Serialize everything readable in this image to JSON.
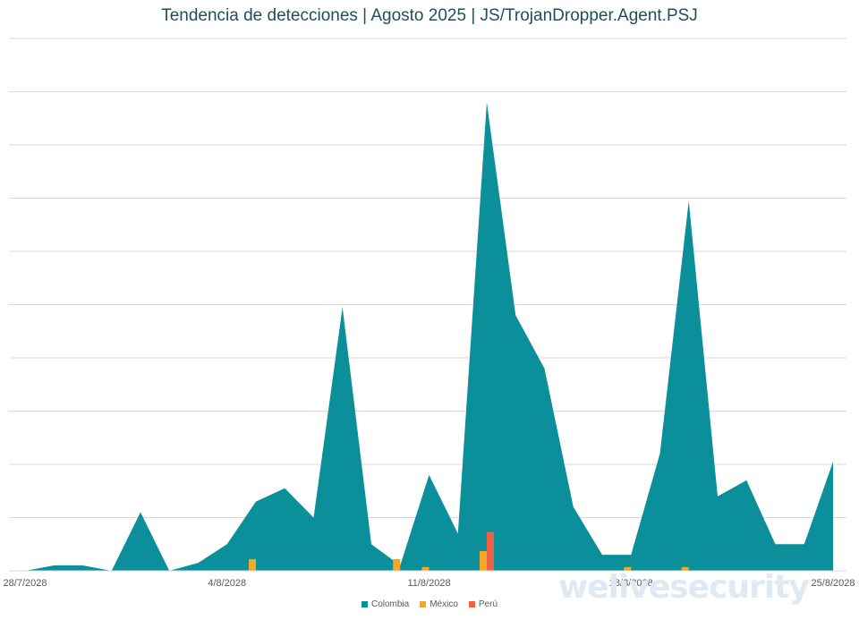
{
  "chart_data": {
    "type": "area",
    "title": "Tendencia de detecciones | Agosto 2025 | JS/TrojanDropper.Agent.PSJ",
    "x_tick_labels": [
      "28/7/2028",
      "4/8/2028",
      "11/8/2028",
      "18/8/2028",
      "25/8/2028"
    ],
    "x_tick_index": [
      0,
      7,
      14,
      21,
      28
    ],
    "ylim": [
      0,
      10
    ],
    "grid": true,
    "legend_position": "bottom",
    "series": [
      {
        "name": "Colombia",
        "kind": "area",
        "color": "#0b8f9a",
        "values": [
          0,
          0.1,
          0.1,
          0,
          1.1,
          0,
          0.15,
          0.5,
          1.3,
          1.55,
          1.0,
          4.95,
          0.5,
          0.1,
          1.8,
          0.7,
          8.8,
          4.8,
          3.8,
          1.2,
          0.3,
          0.3,
          2.2,
          6.95,
          1.4,
          1.7,
          0.5,
          0.5,
          2.05
        ]
      },
      {
        "name": "México",
        "kind": "bar",
        "color": "#f2a926",
        "values": [
          0,
          0,
          0,
          0,
          0,
          0,
          0,
          0,
          0.22,
          0,
          0,
          0,
          0,
          0.22,
          0.07,
          0,
          0.37,
          0,
          0,
          0,
          0,
          0.07,
          0,
          0.07,
          0,
          0,
          0,
          0,
          0
        ]
      },
      {
        "name": "Perú",
        "kind": "bar",
        "color": "#ee6143",
        "values": [
          0,
          0,
          0,
          0,
          0,
          0,
          0,
          0,
          0,
          0,
          0,
          0,
          0,
          0,
          0,
          0,
          0.73,
          0,
          0,
          0,
          0,
          0,
          0,
          0,
          0,
          0,
          0,
          0,
          0
        ]
      }
    ]
  },
  "watermark": "welivesecurity"
}
